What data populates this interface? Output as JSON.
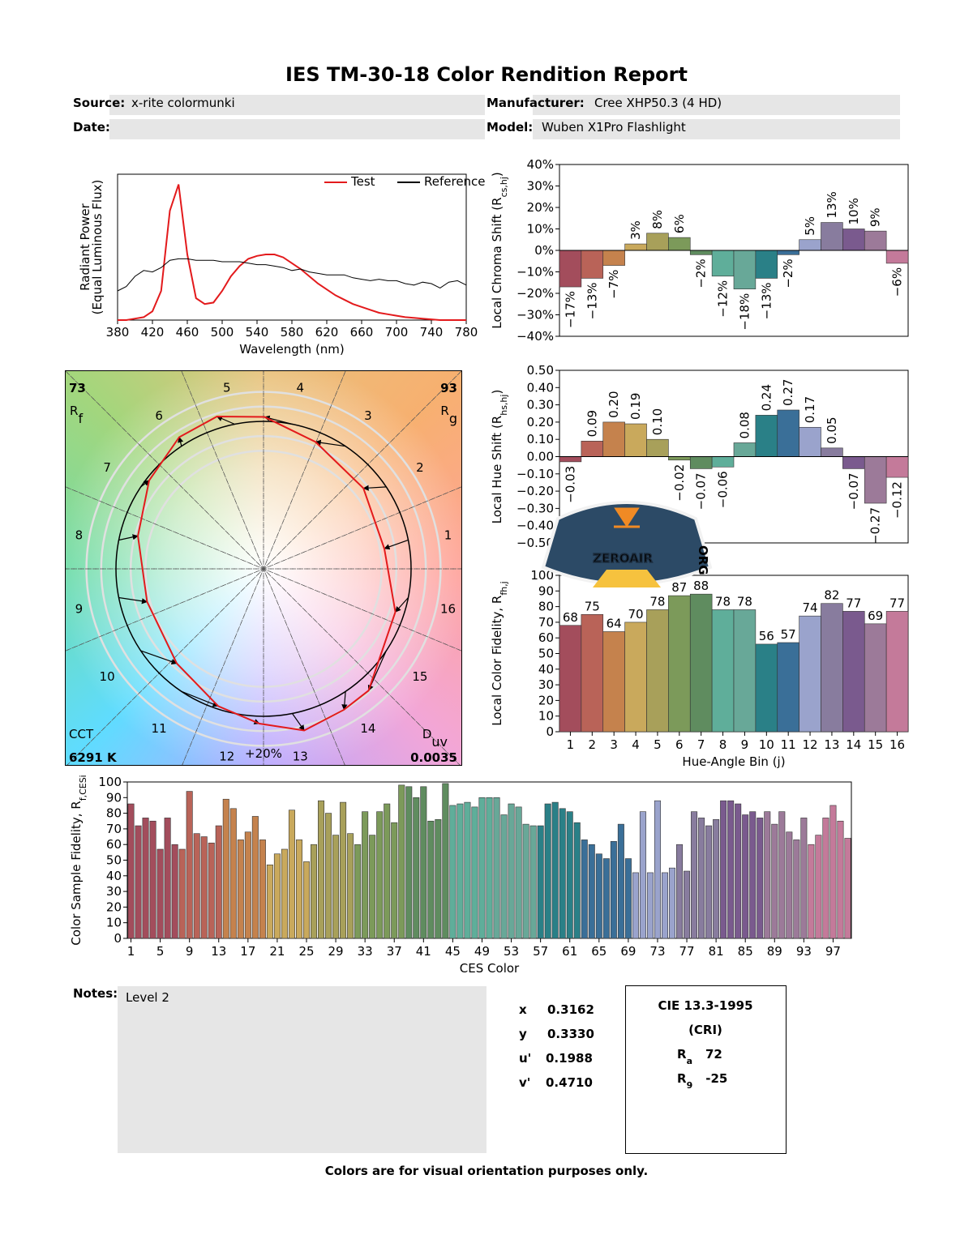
{
  "title": "IES TM-30-18 Color Rendition Report",
  "header": {
    "source_label": "Source:",
    "source": "x-rite colormunki",
    "manufacturer_label": "Manufacturer:",
    "manufacturer": "Cree XHP50.3 (4 HD)",
    "date_label": "Date:",
    "model_label": "Model:",
    "model": "Wuben X1Pro Flashlight"
  },
  "chart_data": [
    {
      "type": "line",
      "x": [
        380,
        390,
        400,
        410,
        420,
        430,
        440,
        450,
        460,
        470,
        480,
        490,
        500,
        510,
        520,
        530,
        540,
        550,
        560,
        570,
        580,
        590,
        600,
        610,
        620,
        630,
        640,
        650,
        660,
        670,
        680,
        690,
        700,
        710,
        720,
        730,
        740,
        750,
        760,
        770,
        780
      ],
      "series": [
        {
          "name": "Test",
          "color": "#e31a1c",
          "values": [
            0,
            0,
            0.01,
            0.02,
            0.06,
            0.2,
            0.75,
            0.93,
            0.45,
            0.15,
            0.11,
            0.12,
            0.2,
            0.3,
            0.37,
            0.42,
            0.44,
            0.45,
            0.45,
            0.43,
            0.39,
            0.35,
            0.3,
            0.25,
            0.21,
            0.17,
            0.14,
            0.11,
            0.09,
            0.07,
            0.05,
            0.04,
            0.03,
            0.02,
            0.015,
            0.01,
            0.005,
            0,
            0,
            0,
            0
          ]
        },
        {
          "name": "Reference",
          "color": "#000000",
          "values": [
            0.2,
            0.23,
            0.3,
            0.34,
            0.33,
            0.36,
            0.41,
            0.42,
            0.42,
            0.41,
            0.41,
            0.41,
            0.4,
            0.4,
            0.4,
            0.39,
            0.38,
            0.38,
            0.37,
            0.36,
            0.34,
            0.35,
            0.33,
            0.32,
            0.31,
            0.31,
            0.31,
            0.29,
            0.28,
            0.27,
            0.28,
            0.27,
            0.27,
            0.25,
            0.24,
            0.26,
            0.25,
            0.22,
            0.26,
            0.27,
            0.24
          ]
        }
      ],
      "xlim": [
        380,
        780
      ],
      "ylim": [
        0,
        1
      ],
      "xticks": [
        380,
        420,
        460,
        500,
        540,
        580,
        620,
        660,
        700,
        740,
        780
      ],
      "xlabel": "Wavelength (nm)",
      "ylabel": "Radiant Power",
      "ylabel_sub": "(Equal Luminous Flux)",
      "legend": "upper right"
    },
    {
      "type": "bar",
      "values": [
        -17,
        -13,
        -7,
        3,
        8,
        6,
        -2,
        -12,
        -18,
        -13,
        -2,
        5,
        13,
        10,
        9,
        -6
      ],
      "value_labels": [
        "−17%",
        "−13%",
        "−7%",
        "3%",
        "8%",
        "6%",
        "−2%",
        "−12%",
        "−18%",
        "−13%",
        "−2%",
        "5%",
        "13%",
        "10%",
        "9%",
        "−6%"
      ],
      "ylim": [
        -40,
        40
      ],
      "yticks": [
        {
          "value": -40,
          "label": "−40%"
        },
        {
          "value": -30,
          "label": "−30%"
        },
        {
          "value": -20,
          "label": "−20%"
        },
        {
          "value": -10,
          "label": "−10%"
        },
        {
          "value": 0,
          "label": "0%"
        },
        {
          "value": 10,
          "label": "10%"
        },
        {
          "value": 20,
          "label": "20%"
        },
        {
          "value": 30,
          "label": "30%"
        },
        {
          "value": 40,
          "label": "40%"
        }
      ],
      "ylabel": [
        "Local Chroma Shift (R",
        "cs,hj",
        ")"
      ],
      "colors": [
        "#a34d5c",
        "#b96358",
        "#c5824d",
        "#c9a95c",
        "#a8a05a",
        "#7c9a5a",
        "#5f8c5f",
        "#5fae9a",
        "#68a898",
        "#2a8087",
        "#3a6f98",
        "#9aa3cc",
        "#887c9e",
        "#7a5a8e",
        "#9c7a99",
        "#c47a9a"
      ]
    },
    {
      "type": "bar",
      "values": [
        -0.03,
        0.09,
        0.2,
        0.19,
        0.1,
        -0.02,
        -0.07,
        -0.06,
        0.08,
        0.24,
        0.27,
        0.17,
        0.05,
        -0.07,
        -0.27,
        -0.12
      ],
      "value_labels": [
        "−0.03",
        "0.09",
        "0.20",
        "0.19",
        "0.10",
        "−0.02",
        "−0.07",
        "−0.06",
        "0.08",
        "0.24",
        "0.27",
        "0.17",
        "0.05",
        "−0.07",
        "−0.27",
        "−0.12"
      ],
      "ylim": [
        -0.5,
        0.5
      ],
      "yticks": [
        {
          "value": -0.5,
          "label": "−0.50"
        },
        {
          "value": -0.4,
          "label": "−0.40"
        },
        {
          "value": -0.3,
          "label": "−0.30"
        },
        {
          "value": -0.2,
          "label": "−0.20"
        },
        {
          "value": -0.1,
          "label": "−0.10"
        },
        {
          "value": 0,
          "label": "0.00"
        },
        {
          "value": 0.1,
          "label": "0.10"
        },
        {
          "value": 0.2,
          "label": "0.20"
        },
        {
          "value": 0.3,
          "label": "0.30"
        },
        {
          "value": 0.4,
          "label": "0.40"
        },
        {
          "value": 0.5,
          "label": "0.50"
        }
      ],
      "ylabel": [
        "Local Hue Shift (R",
        "hs,hj",
        ")"
      ],
      "colors": [
        "#a34d5c",
        "#b96358",
        "#c5824d",
        "#c9a95c",
        "#a8a05a",
        "#7c9a5a",
        "#5f8c5f",
        "#5fae9a",
        "#68a898",
        "#2a8087",
        "#3a6f98",
        "#9aa3cc",
        "#887c9e",
        "#7a5a8e",
        "#9c7a99",
        "#c47a9a"
      ]
    },
    {
      "type": "bar",
      "categories": [
        1,
        2,
        3,
        4,
        5,
        6,
        7,
        8,
        9,
        10,
        11,
        12,
        13,
        14,
        15,
        16
      ],
      "values": [
        68,
        75,
        64,
        70,
        78,
        87,
        88,
        78,
        78,
        56,
        57,
        74,
        82,
        77,
        69,
        77
      ],
      "ylim": [
        0,
        100
      ],
      "yticks": [
        0,
        10,
        20,
        30,
        40,
        50,
        60,
        70,
        80,
        90,
        100
      ],
      "xlabel": "Hue-Angle Bin (j)",
      "ylabel": [
        "Local Color Fidelity, R",
        "fh,j"
      ],
      "colors": [
        "#a34d5c",
        "#b96358",
        "#c5824d",
        "#c9a95c",
        "#a8a05a",
        "#7c9a5a",
        "#5f8c5f",
        "#5fae9a",
        "#68a898",
        "#2a8087",
        "#3a6f98",
        "#9aa3cc",
        "#887c9e",
        "#7a5a8e",
        "#9c7a99",
        "#c47a9a"
      ]
    },
    {
      "type": "bar",
      "categories": [
        1,
        null,
        null,
        null,
        5,
        null,
        null,
        null,
        9,
        null,
        null,
        null,
        13,
        null,
        null,
        null,
        17,
        null,
        null,
        null,
        21,
        null,
        null,
        null,
        25,
        null,
        null,
        null,
        29,
        null,
        null,
        null,
        33,
        null,
        null,
        null,
        37,
        null,
        null,
        null,
        41,
        null,
        null,
        null,
        45,
        null,
        null,
        null,
        49,
        null,
        null,
        null,
        53,
        null,
        null,
        null,
        57,
        null,
        null,
        null,
        61,
        null,
        null,
        null,
        65,
        null,
        null,
        null,
        69,
        null,
        null,
        null,
        73,
        null,
        null,
        null,
        77,
        null,
        null,
        null,
        81,
        null,
        null,
        null,
        85,
        null,
        null,
        null,
        89,
        null,
        null,
        null,
        93,
        null,
        null,
        null,
        97,
        null,
        null
      ],
      "values": [
        86,
        72,
        77,
        75,
        57,
        77,
        60,
        57,
        94,
        67,
        65,
        61,
        72,
        89,
        83,
        63,
        68,
        78,
        63,
        47,
        54,
        57,
        82,
        63,
        49,
        60,
        88,
        80,
        66,
        87,
        67,
        60,
        81,
        66,
        81,
        86,
        74,
        98,
        97,
        90,
        97,
        75,
        76,
        99,
        85,
        86,
        87,
        84,
        90,
        90,
        90,
        79,
        86,
        84,
        73,
        72,
        72,
        86,
        87,
        83,
        81,
        74,
        63,
        60,
        54,
        51,
        62,
        73,
        51,
        42,
        81,
        42,
        88,
        42,
        45,
        60,
        43,
        81,
        77,
        72,
        76,
        88,
        88,
        86,
        79,
        81,
        77,
        81,
        73,
        81,
        68,
        63,
        77,
        60,
        66,
        77,
        85,
        75,
        64
      ],
      "ylim": [
        0,
        100
      ],
      "yticks": [
        0,
        10,
        20,
        30,
        40,
        50,
        60,
        70,
        80,
        90,
        100
      ],
      "xlabel": "CES Color",
      "ylabel": [
        "Color Sample Fidelity, R",
        "f,CESi"
      ],
      "colors": [
        "#a34d5c",
        "#b96358",
        "#c5824d",
        "#c9a95c",
        "#a8a05a",
        "#7c9a5a",
        "#5f8c5f",
        "#5fae9a",
        "#68a898",
        "#2a8087",
        "#3a6f98",
        "#9aa3cc",
        "#887c9e",
        "#7a5a8e",
        "#9c7a99",
        "#c47a9a"
      ]
    }
  ],
  "color_vector_graphic": {
    "rf": 73,
    "rf_label": [
      "R",
      "f"
    ],
    "rg": 93,
    "rg_label": [
      "R",
      "g"
    ],
    "cct_label": "CCT",
    "cct": "6291 K",
    "duv_label": [
      "D",
      "uv"
    ],
    "duv": "0.0035",
    "scale_label": "+20%"
  },
  "logo": {
    "text": "ZEROAIR",
    "suffix": "ORG"
  },
  "notes": {
    "label": "Notes:",
    "text": "Level 2"
  },
  "chromaticity": {
    "x_label": "x",
    "x": "0.3162",
    "y_label": "y",
    "y": "0.3330",
    "u_label": "u'",
    "u": "0.1988",
    "v_label": "v'",
    "v": "0.4710"
  },
  "cri": {
    "title": "CIE 13.3-1995",
    "subtitle": "(CRI)",
    "ra_label": [
      "R",
      "a"
    ],
    "ra": 72,
    "r9_label": [
      "R",
      "9"
    ],
    "r9": -25
  },
  "footer": "Colors are for visual orientation purposes only."
}
